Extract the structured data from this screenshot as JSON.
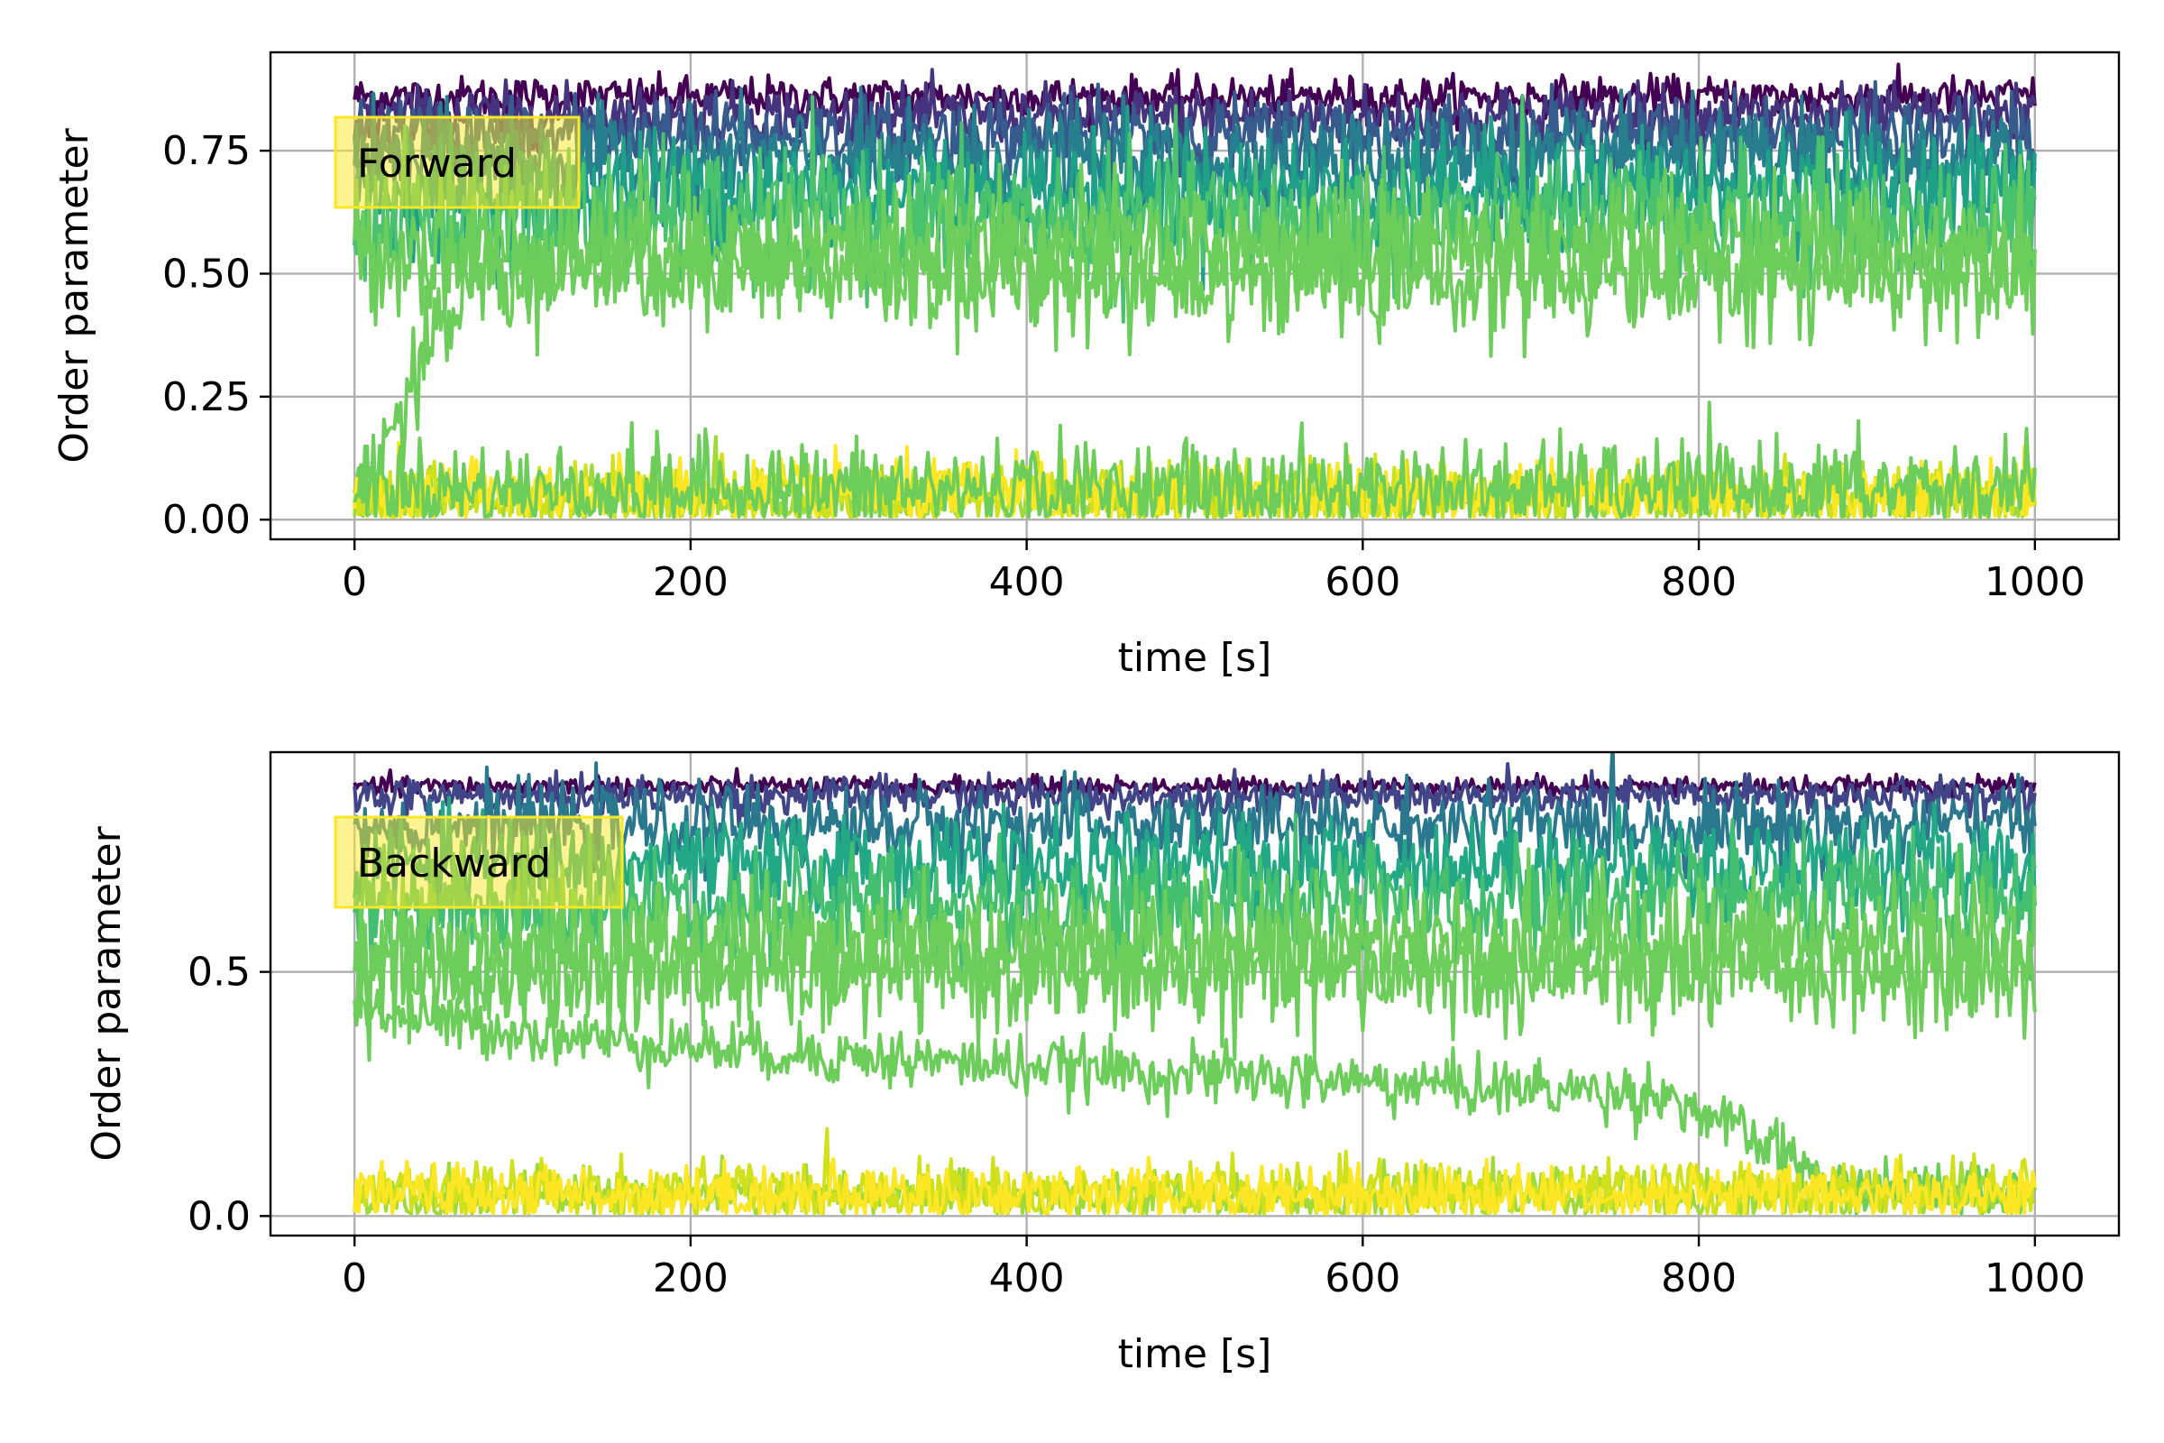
{
  "chart_data": [
    {
      "type": "line",
      "annotation": "Forward",
      "xlabel": "time [s]",
      "ylabel": "Order parameter",
      "xlim": [
        -50,
        1050
      ],
      "ylim": [
        -0.04,
        0.95
      ],
      "xticks": [
        0,
        200,
        400,
        600,
        800,
        1000
      ],
      "xtick_labels": [
        "0",
        "200",
        "400",
        "600",
        "800",
        "1000"
      ],
      "yticks": [
        0.0,
        0.25,
        0.5,
        0.75
      ],
      "ytick_labels": [
        "0.00",
        "0.25",
        "0.50",
        "0.75"
      ],
      "grid": true,
      "annotation_box_color": "#fde725",
      "colormap": "viridis",
      "colormap_stops": [
        "#440154",
        "#3b528b",
        "#21918c",
        "#5ec962",
        "#fde725"
      ],
      "time_range": [
        0,
        1000
      ],
      "series": [
        {
          "color": "#440154",
          "mean": 0.86,
          "noise": 0.02
        },
        {
          "color": "#46337e",
          "mean": 0.82,
          "noise": 0.03
        },
        {
          "color": "#365c8d",
          "mean": 0.78,
          "noise": 0.04
        },
        {
          "color": "#277f8e",
          "mean": 0.73,
          "noise": 0.05
        },
        {
          "color": "#1fa187",
          "mean": 0.67,
          "noise": 0.06
        },
        {
          "color": "#4ac16d",
          "mean": 0.61,
          "noise": 0.07
        },
        {
          "color": "#6ccd5a",
          "mean": 0.55,
          "noise": 0.07
        },
        {
          "color": "#6ccd5a",
          "mean": 0.5,
          "noise": 0.06,
          "start": 0.03,
          "rise_end_time": 70
        },
        {
          "color": "#a0da39",
          "mean": 0.04,
          "noise": 0.03
        },
        {
          "color": "#d0e11c",
          "mean": 0.05,
          "noise": 0.035
        },
        {
          "color": "#fde725",
          "mean": 0.05,
          "noise": 0.035
        },
        {
          "color": "#6ccd5a",
          "mean": 0.06,
          "noise": 0.05
        }
      ]
    },
    {
      "type": "line",
      "annotation": "Backward",
      "xlabel": "time [s]",
      "ylabel": "Order parameter",
      "xlim": [
        -50,
        1050
      ],
      "ylim": [
        -0.04,
        0.95
      ],
      "xticks": [
        0,
        200,
        400,
        600,
        800,
        1000
      ],
      "xtick_labels": [
        "0",
        "200",
        "400",
        "600",
        "800",
        "1000"
      ],
      "yticks": [
        0.0,
        0.5
      ],
      "ytick_labels": [
        "0.0",
        "0.5"
      ],
      "grid": true,
      "annotation_box_color": "#fde725",
      "colormap": "viridis",
      "colormap_stops": [
        "#440154",
        "#3b528b",
        "#21918c",
        "#5ec962",
        "#fde725"
      ],
      "time_range": [
        0,
        1000
      ],
      "series": [
        {
          "color": "#440154",
          "mean": 0.88,
          "noise": 0.01
        },
        {
          "color": "#414487",
          "mean": 0.86,
          "noise": 0.02
        },
        {
          "color": "#2a788e",
          "mean": 0.8,
          "noise": 0.04
        },
        {
          "color": "#22a884",
          "mean": 0.72,
          "noise": 0.05
        },
        {
          "color": "#44bf70",
          "mean": 0.64,
          "noise": 0.06
        },
        {
          "color": "#6ccd5a",
          "mean": 0.56,
          "noise": 0.07
        },
        {
          "color": "#6ccd5a",
          "mean": 0.5,
          "noise": 0.06
        },
        {
          "color": "#6ccd5a",
          "decay_from": 0.45,
          "decay_to": 0.25,
          "collapse_start": 780,
          "collapse_end": 890,
          "noise": 0.03
        },
        {
          "color": "#a0da39",
          "mean": 0.04,
          "noise": 0.025
        },
        {
          "color": "#d0e11c",
          "mean": 0.05,
          "noise": 0.03
        },
        {
          "color": "#fde725",
          "mean": 0.045,
          "noise": 0.03
        }
      ]
    }
  ]
}
